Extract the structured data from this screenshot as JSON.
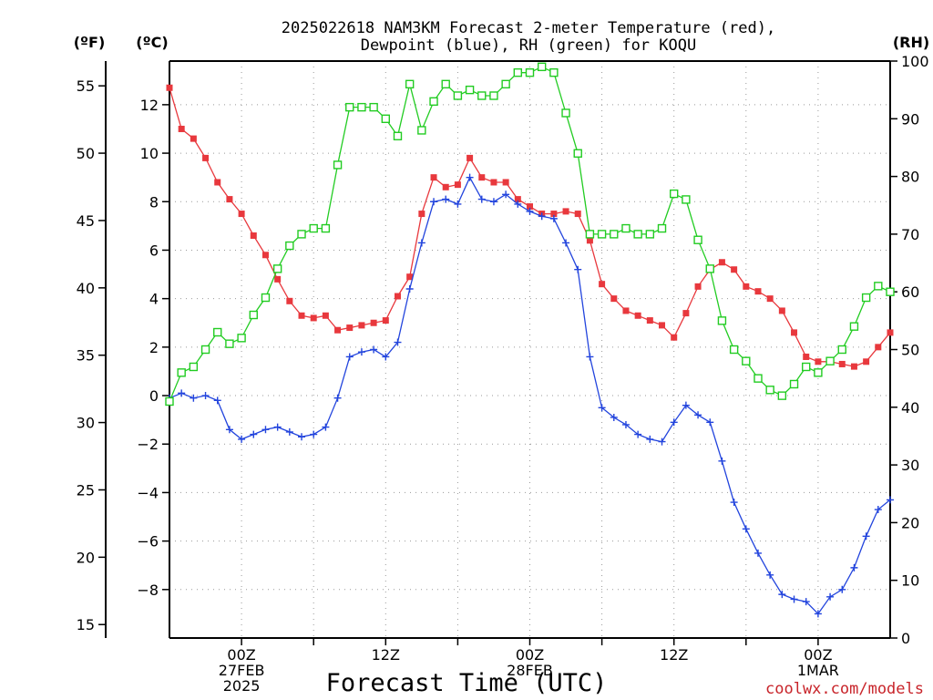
{
  "title_line1": "2025022618 NAM3KM Forecast 2-meter Temperature (red),",
  "title_line2": "Dewpoint (blue), RH (green) for KOQU",
  "unit_f": "(ºF)",
  "unit_c": "(ºC)",
  "unit_rh": "(RH)",
  "xlabel": "Forecast Time (UTC)",
  "credit": "coolwx.com/models",
  "colors": {
    "temperature": "#e8383d",
    "dewpoint": "#2244dd",
    "rh": "#22cc22"
  },
  "chart_data": {
    "type": "line",
    "x_unit": "forecast hour from 2025-02-26 18Z",
    "x": [
      0,
      1,
      2,
      3,
      4,
      5,
      6,
      7,
      8,
      9,
      10,
      11,
      12,
      13,
      14,
      15,
      16,
      17,
      18,
      19,
      20,
      21,
      22,
      23,
      24,
      25,
      26,
      27,
      28,
      29,
      30,
      31,
      32,
      33,
      34,
      35,
      36,
      37,
      38,
      39,
      40,
      41,
      42,
      43,
      44,
      45,
      46,
      47,
      48,
      49,
      50,
      51,
      52,
      53,
      54,
      55,
      56,
      57,
      58,
      59,
      60
    ],
    "xlim": [
      0,
      60
    ],
    "x_ticks": [
      {
        "hour": 6,
        "lines": [
          "00Z",
          "27FEB",
          "2025"
        ]
      },
      {
        "hour": 18,
        "lines": [
          "12Z"
        ]
      },
      {
        "hour": 30,
        "lines": [
          "00Z",
          "28FEB"
        ]
      },
      {
        "hour": 42,
        "lines": [
          "12Z"
        ]
      },
      {
        "hour": 54,
        "lines": [
          "00Z",
          "1MAR"
        ]
      }
    ],
    "ylim_c": [
      -10,
      13.8
    ],
    "y_ticks_c": [
      -8,
      -6,
      -4,
      -2,
      0,
      2,
      4,
      6,
      8,
      10,
      12
    ],
    "y_ticks_f": [
      15,
      20,
      25,
      30,
      35,
      40,
      45,
      50,
      55
    ],
    "ylim_rh": [
      0,
      100
    ],
    "y_ticks_rh": [
      0,
      10,
      20,
      30,
      40,
      50,
      60,
      70,
      80,
      90,
      100
    ],
    "grid": true,
    "series": [
      {
        "name": "Temperature",
        "axis": "c",
        "marker": "filled-square",
        "values": [
          12.7,
          11.0,
          10.6,
          9.8,
          8.8,
          8.1,
          7.5,
          6.6,
          5.8,
          4.8,
          3.9,
          3.3,
          3.2,
          3.3,
          2.7,
          2.8,
          2.9,
          3.0,
          3.1,
          4.1,
          4.9,
          7.5,
          9.0,
          8.6,
          8.7,
          9.8,
          9.0,
          8.8,
          8.8,
          8.1,
          7.8,
          7.5,
          7.5,
          7.6,
          7.5,
          6.4,
          4.6,
          4.0,
          3.5,
          3.3,
          3.1,
          2.9,
          2.4,
          3.4,
          4.5,
          5.2,
          5.5,
          5.2,
          4.5,
          4.3,
          4.0,
          3.5,
          2.6,
          1.6,
          1.4,
          1.4,
          1.3,
          1.2,
          1.4,
          2.0,
          2.6
        ]
      },
      {
        "name": "Dewpoint",
        "axis": "c",
        "marker": "plus",
        "values": [
          -0.1,
          0.1,
          -0.1,
          0.0,
          -0.2,
          -1.4,
          -1.8,
          -1.6,
          -1.4,
          -1.3,
          -1.5,
          -1.7,
          -1.6,
          -1.3,
          -0.1,
          1.6,
          1.8,
          1.9,
          1.6,
          2.2,
          4.4,
          6.3,
          8.0,
          8.1,
          7.9,
          9.0,
          8.1,
          8.0,
          8.3,
          7.9,
          7.6,
          7.4,
          7.3,
          6.3,
          5.2,
          1.6,
          -0.5,
          -0.9,
          -1.2,
          -1.6,
          -1.8,
          -1.9,
          -1.1,
          -0.4,
          -0.8,
          -1.1,
          -2.7,
          -4.4,
          -5.5,
          -6.5,
          -7.4,
          -8.2,
          -8.4,
          -8.5,
          -9.0,
          -8.3,
          -8.0,
          -7.1,
          -5.8,
          -4.7,
          -4.3
        ]
      },
      {
        "name": "RH",
        "axis": "rh",
        "marker": "open-square",
        "values": [
          41,
          46,
          47,
          50,
          53,
          51,
          52,
          56,
          59,
          64,
          68,
          70,
          71,
          71,
          82,
          92,
          92,
          92,
          90,
          87,
          96,
          88,
          93,
          96,
          94,
          95,
          94,
          94,
          96,
          98,
          98,
          99,
          98,
          91,
          84,
          70,
          70,
          70,
          71,
          70,
          70,
          71,
          77,
          76,
          69,
          64,
          55,
          50,
          48,
          45,
          43,
          42,
          44,
          47,
          46,
          48,
          50,
          54,
          59,
          61,
          60
        ]
      }
    ]
  }
}
